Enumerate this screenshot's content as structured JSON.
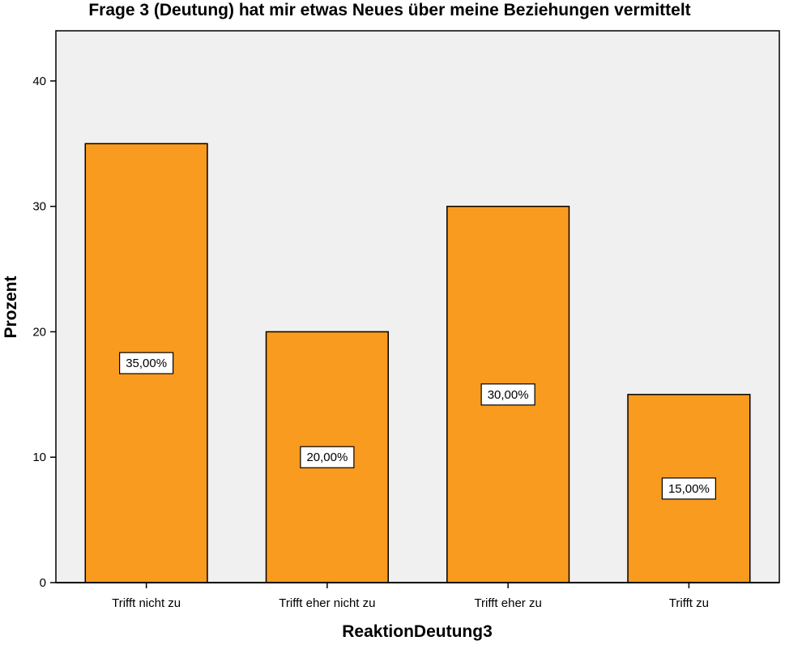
{
  "chart_data": {
    "type": "bar",
    "title": "Frage 3 (Deutung) hat mir etwas Neues über meine Beziehungen vermittelt",
    "xlabel": "ReaktionDeutung3",
    "ylabel": "Prozent",
    "categories": [
      "Trifft nicht zu",
      "Trifft eher nicht zu",
      "Trifft eher zu",
      "Trifft zu"
    ],
    "values": [
      35,
      20,
      30,
      15
    ],
    "data_labels": [
      "35,00%",
      "20,00%",
      "30,00%",
      "15,00%"
    ],
    "yticks": [
      0,
      10,
      20,
      30,
      40
    ],
    "ylim": [
      0,
      44
    ],
    "grid": false,
    "legend": "none",
    "colors": {
      "bar_fill": "#f99b1f",
      "bar_stroke": "#000000",
      "plot_background": "#f0f0f0",
      "label_box": "#ffffff"
    }
  }
}
